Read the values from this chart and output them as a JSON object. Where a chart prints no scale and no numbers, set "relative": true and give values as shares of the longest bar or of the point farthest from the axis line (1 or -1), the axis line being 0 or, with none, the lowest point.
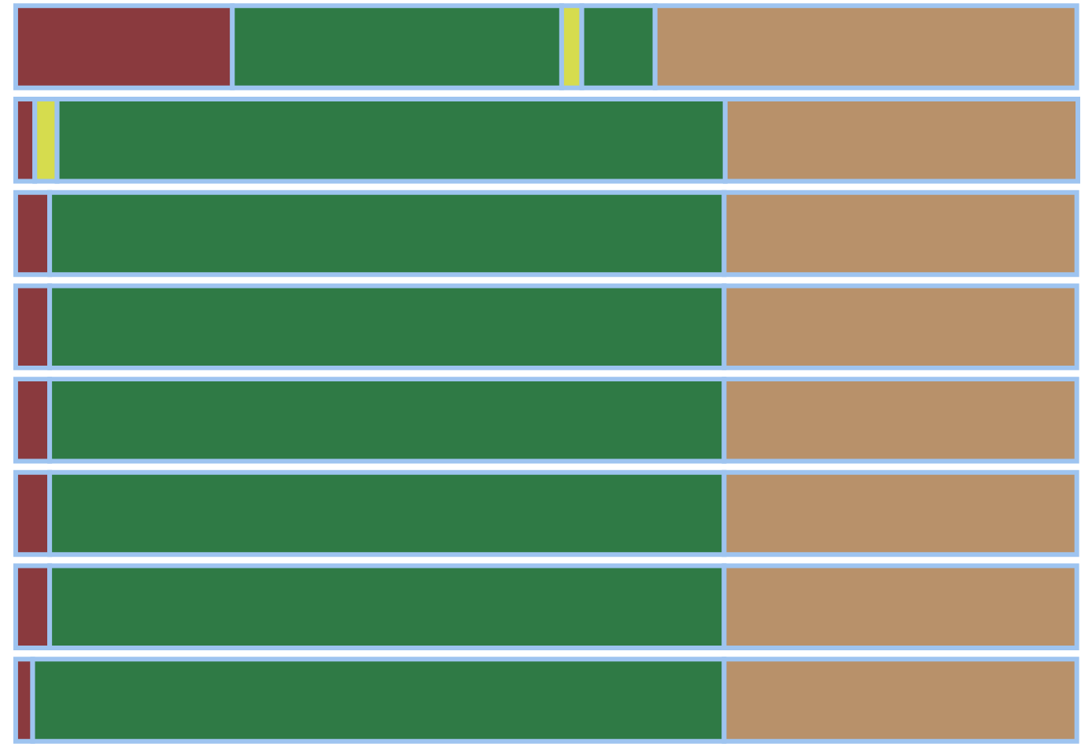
{
  "chart_data": {
    "type": "bar",
    "orientation": "horizontal",
    "stacked": true,
    "relative": true,
    "legend": false,
    "categories": [
      null,
      null,
      null,
      null,
      null,
      null,
      null,
      null
    ],
    "series": [
      {
        "color": "#8a3a3e",
        "values": [
          0.204,
          0.018,
          0.032,
          0.032,
          0.032,
          0.032,
          0.032,
          0.016
        ]
      },
      {
        "color": "#2f7a45",
        "values": [
          0.31,
          null,
          null,
          null,
          null,
          null,
          null,
          null
        ]
      },
      {
        "color": "#d6dc4e",
        "values": [
          0.019,
          0.021,
          null,
          null,
          null,
          null,
          null,
          null
        ]
      },
      {
        "color": "#2f7a45",
        "values": [
          0.069,
          0.629,
          0.635,
          0.635,
          0.635,
          0.635,
          0.635,
          0.651
        ]
      },
      {
        "color": "#b8916a",
        "values": [
          0.397,
          0.332,
          0.332,
          0.332,
          0.332,
          0.332,
          0.332,
          0.332
        ]
      }
    ]
  }
}
